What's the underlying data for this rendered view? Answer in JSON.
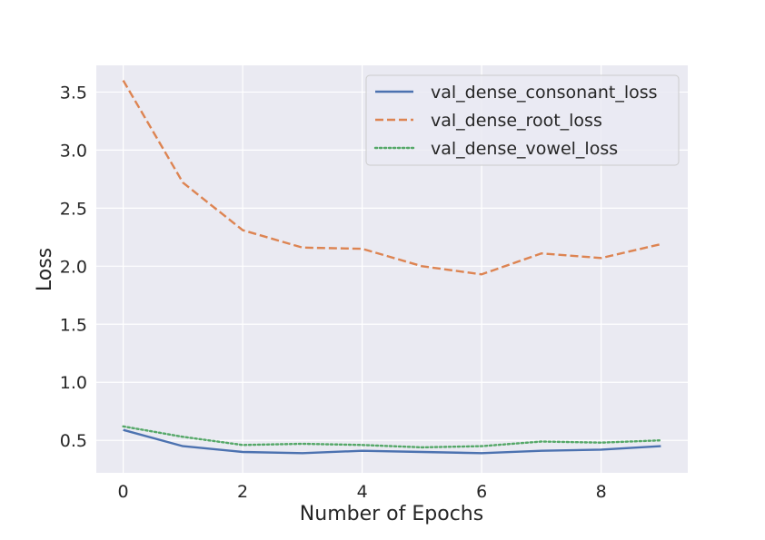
{
  "chart_data": {
    "type": "line",
    "title": "",
    "xlabel": "Number of Epochs",
    "ylabel": "Loss",
    "x": [
      0,
      1,
      2,
      3,
      4,
      5,
      6,
      7,
      8,
      9
    ],
    "xlim": [
      -0.45,
      9.45
    ],
    "ylim": [
      0.22,
      3.73
    ],
    "xticks": [
      0,
      2,
      4,
      6,
      8
    ],
    "yticks": [
      0.5,
      1.0,
      1.5,
      2.0,
      2.5,
      3.0,
      3.5
    ],
    "xtick_labels": [
      "0",
      "2",
      "4",
      "6",
      "8"
    ],
    "ytick_labels": [
      "0.5",
      "1.0",
      "1.5",
      "2.0",
      "2.5",
      "3.0",
      "3.5"
    ],
    "grid": true,
    "legend_position": "top-right",
    "series": [
      {
        "name": "val_dense_consonant_loss",
        "color": "#4c72b0",
        "style": "solid",
        "values": [
          0.59,
          0.45,
          0.4,
          0.39,
          0.41,
          0.4,
          0.39,
          0.41,
          0.42,
          0.45
        ]
      },
      {
        "name": "val_dense_root_loss",
        "color": "#dd8452",
        "style": "dashed",
        "values": [
          3.6,
          2.72,
          2.31,
          2.16,
          2.15,
          2.0,
          1.93,
          2.11,
          2.07,
          2.19
        ]
      },
      {
        "name": "val_dense_vowel_loss",
        "color": "#55a868",
        "style": "dotted",
        "values": [
          0.62,
          0.53,
          0.46,
          0.47,
          0.46,
          0.44,
          0.45,
          0.49,
          0.48,
          0.5
        ]
      }
    ]
  }
}
